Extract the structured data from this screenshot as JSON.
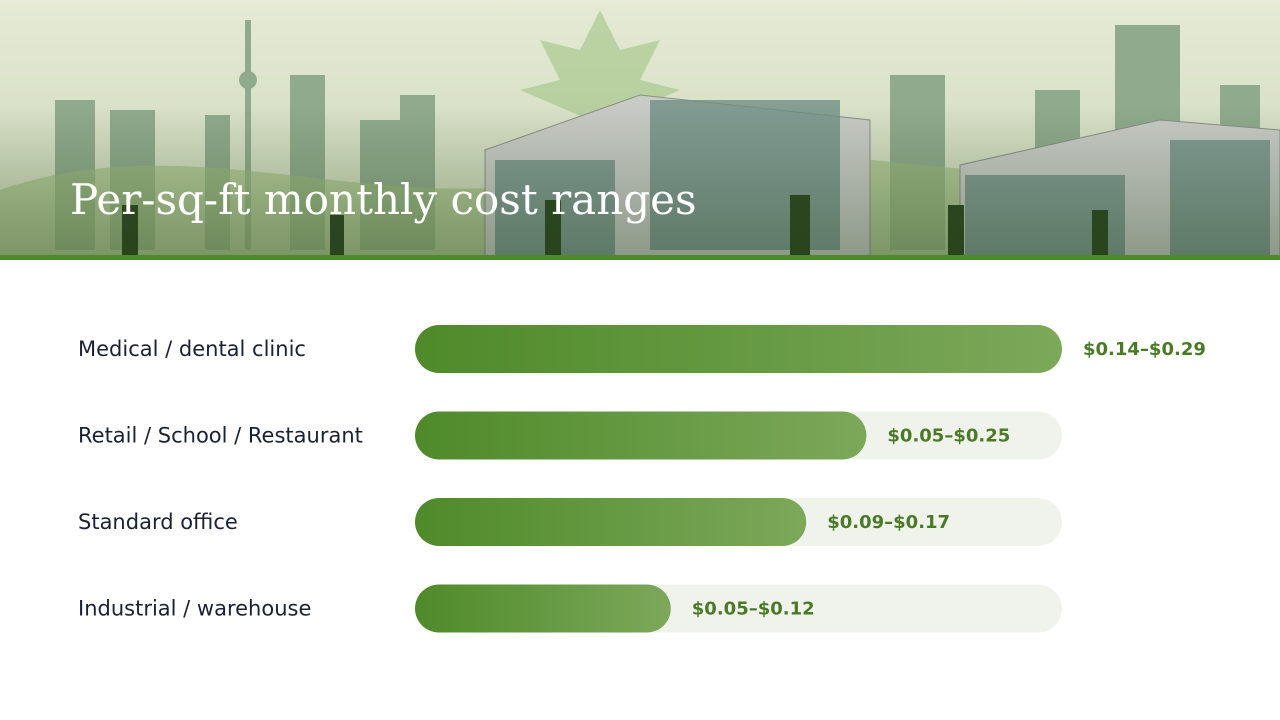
{
  "chart_data": {
    "type": "range-bar",
    "title": "Per-sq-ft monthly cost ranges",
    "categories": [
      "Medical / dental clinic",
      "Retail / School / Restaurant",
      "Standard office",
      "Industrial / warehouse"
    ],
    "low": [
      0.14,
      0.05,
      0.09,
      0.05
    ],
    "high": [
      0.29,
      0.25,
      0.17,
      0.12
    ],
    "value_labels": [
      "$0.14–$0.29",
      "$0.05–$0.25",
      "$0.09–$0.17",
      "$0.05–$0.12"
    ],
    "color": "#5a922f"
  }
}
